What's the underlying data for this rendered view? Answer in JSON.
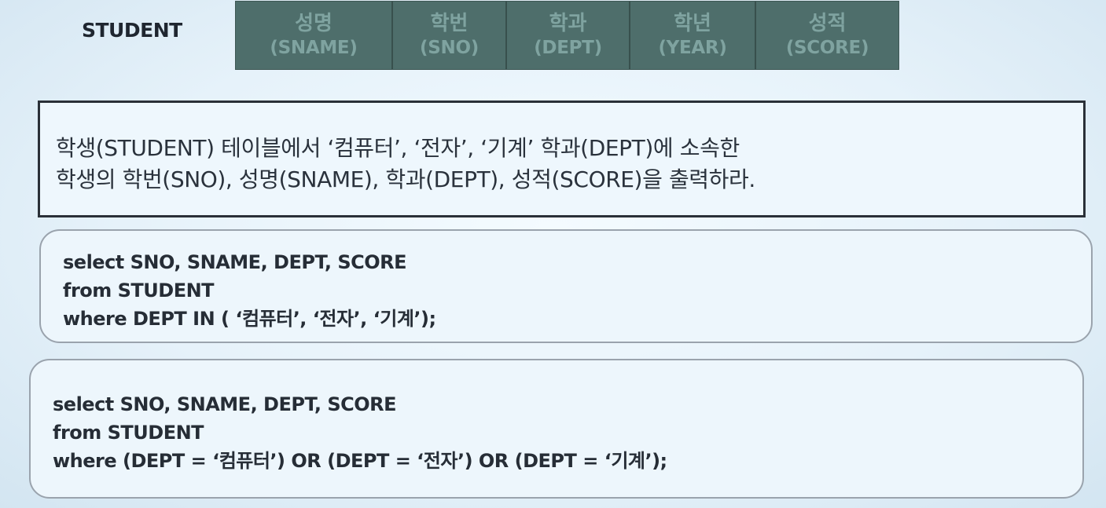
{
  "table": {
    "name": "STUDENT",
    "columns": [
      {
        "ko": "성명",
        "en": "(SNAME)",
        "width": 198
      },
      {
        "ko": "학번",
        "en": "(SNO)",
        "width": 143
      },
      {
        "ko": "학과",
        "en": "(DEPT)",
        "width": 155
      },
      {
        "ko": "학년",
        "en": "(YEAR)",
        "width": 158
      },
      {
        "ko": "성적",
        "en": "(SCORE)",
        "width": 181
      }
    ]
  },
  "task": {
    "text": "학생(STUDENT) 테이블에서 ‘컴퓨터’, ‘전자’, ‘기계’  학과(DEPT)에 소속한\n학생의  학번(SNO), 성명(SNAME), 학과(DEPT), 성적(SCORE)을 출력하라."
  },
  "query1": {
    "lines": [
      "select SNO, SNAME, DEPT, SCORE",
      "from STUDENT",
      "where DEPT IN ( ‘컴퓨터’, ‘전자’, ‘기계’);"
    ]
  },
  "query2": {
    "lines": [
      "select SNO, SNAME, DEPT, SCORE",
      "from STUDENT",
      "where (DEPT = ‘컴퓨터’) OR (DEPT = ‘전자’) OR (DEPT = ‘기계’);"
    ]
  }
}
